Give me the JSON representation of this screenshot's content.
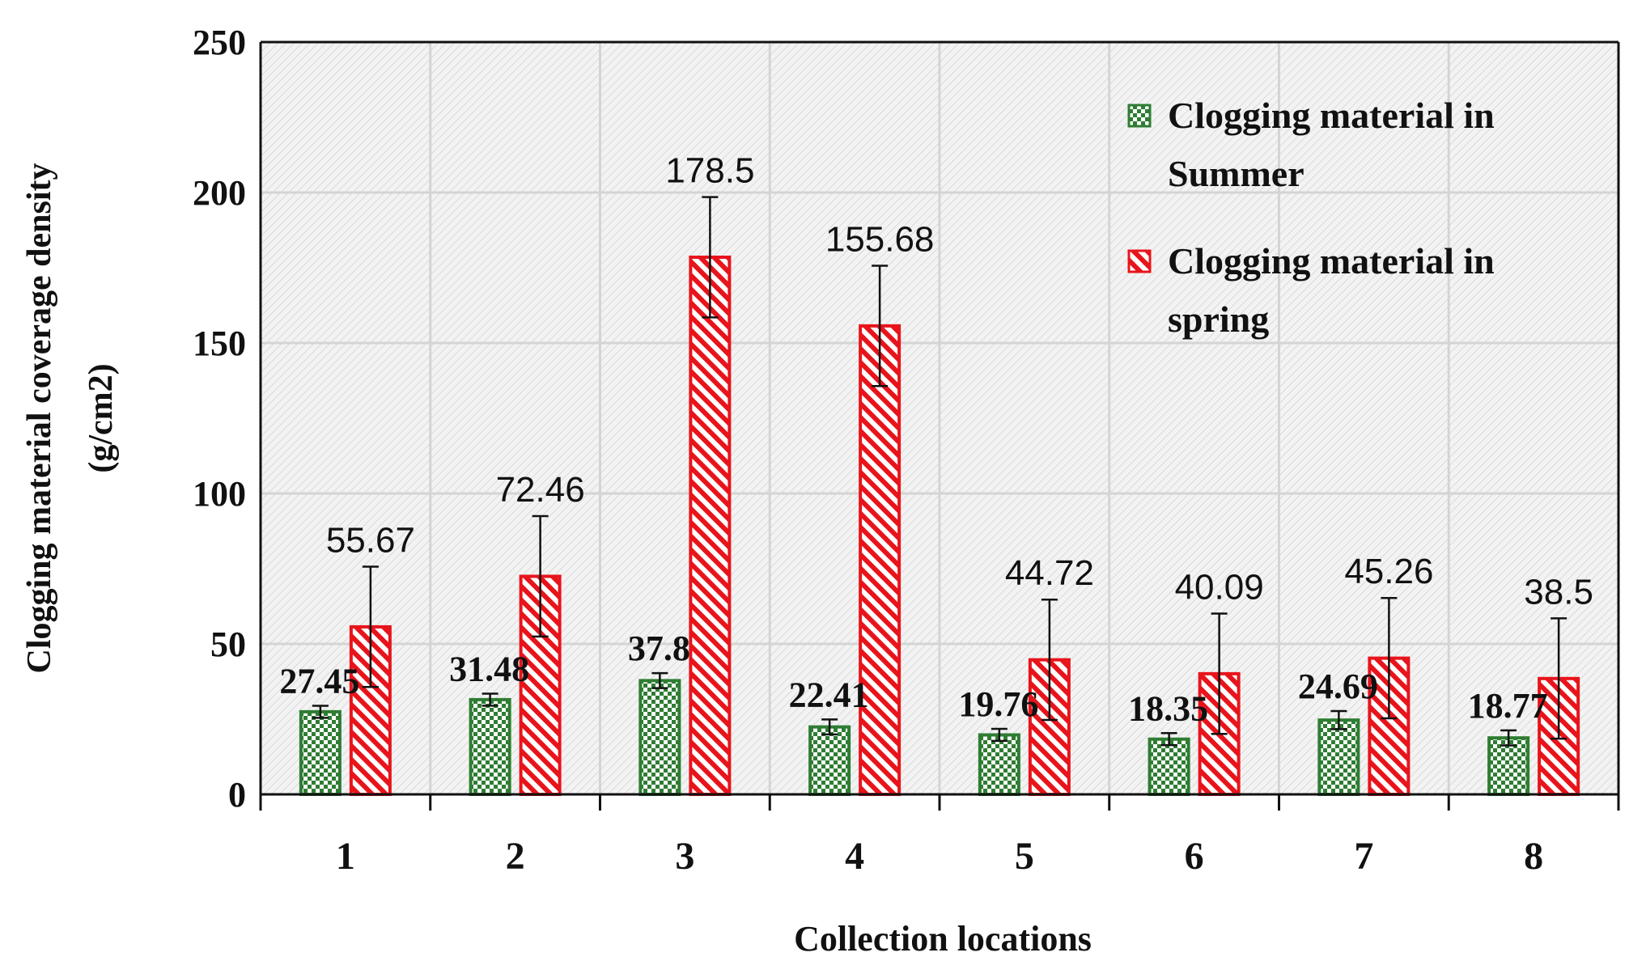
{
  "chart_data": {
    "type": "bar",
    "xlabel": "Collection locations",
    "ylabel_line1": "Clogging material coverage density",
    "ylabel_line2": "(g/cm2)",
    "ylim": [
      0,
      250
    ],
    "yticks": [
      0,
      50,
      100,
      150,
      200,
      250
    ],
    "grid": true,
    "legend_position": "top-right",
    "categories": [
      "1",
      "2",
      "3",
      "4",
      "5",
      "6",
      "7",
      "8"
    ],
    "series": [
      {
        "name_line1": "Clogging material in",
        "name_line2": "Summer",
        "color": "#2e7d32",
        "pattern": "checker",
        "values": [
          27.45,
          31.48,
          37.8,
          22.41,
          19.76,
          18.35,
          24.69,
          18.77
        ],
        "labels": [
          "27.45",
          "31.48",
          "37.8",
          "22.41",
          "19.76",
          "18.35",
          "24.69",
          "18.77"
        ],
        "error": [
          2,
          2,
          2.5,
          2.5,
          2,
          2,
          3,
          2.5
        ]
      },
      {
        "name_line1": "Clogging material in",
        "name_line2": "spring",
        "color": "#e8141b",
        "pattern": "diagonal",
        "values": [
          55.67,
          72.46,
          178.5,
          155.68,
          44.72,
          40.09,
          45.26,
          38.5
        ],
        "labels": [
          "55.67",
          "72.46",
          "178.5",
          "155.68",
          "44.72",
          "40.09",
          "45.26",
          "38.5"
        ],
        "error": [
          20,
          20,
          20,
          20,
          20,
          20,
          20,
          20
        ]
      }
    ]
  }
}
